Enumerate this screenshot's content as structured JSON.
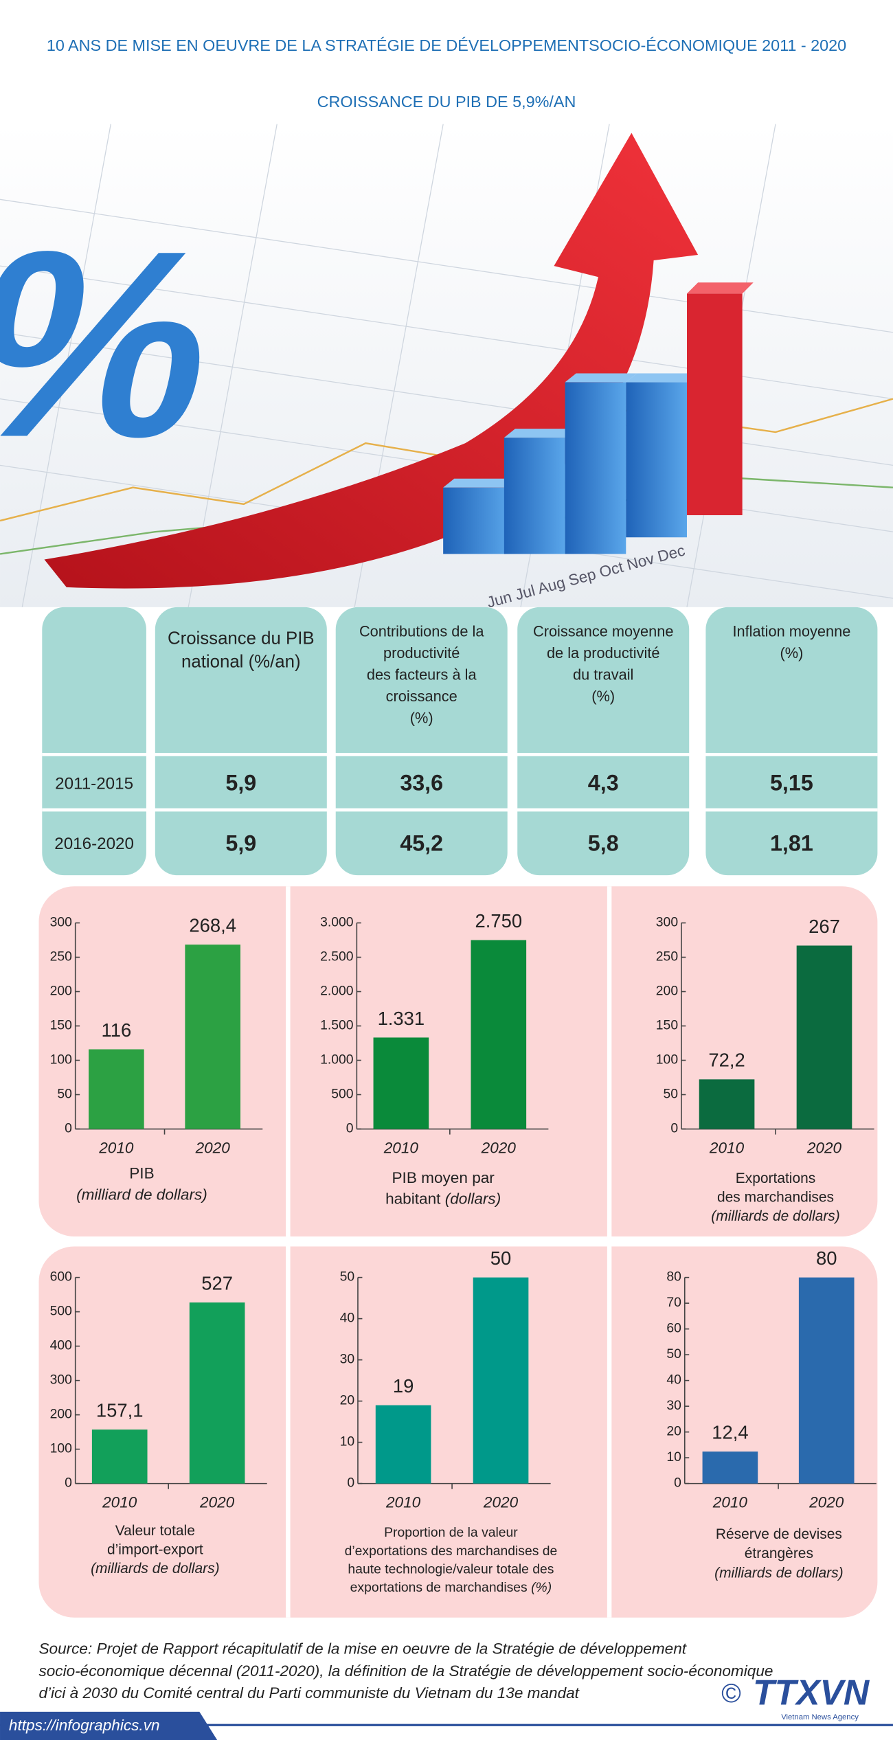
{
  "header": {
    "title": "10 ANS DE MISE EN OEUVRE DE LA STRATÉGIE DE DÉVELOPPEMENTSOCIO-ÉCONOMIQUE 2011 - 2020",
    "subtitle": "CROISSANCE DU PIB DE  5,9%/AN"
  },
  "table": {
    "columns": [
      [
        "Croissance du PIB",
        "national (%/an)"
      ],
      [
        "Contributions de la",
        "productivité",
        "des facteurs à la",
        "croissance",
        "(%)"
      ],
      [
        "Croissance moyenne",
        "de la productivité",
        "du travail",
        "(%)"
      ],
      [
        "Inflation moyenne",
        "(%)"
      ]
    ],
    "rows": [
      [
        "2011-2015",
        "5,9",
        "33,6",
        "4,3",
        "5,15"
      ],
      [
        "2016-2020",
        "5,9",
        "45,2",
        "5,8",
        "1,81"
      ]
    ]
  },
  "chart_data": [
    {
      "type": "bar",
      "caption": [
        [
          "PIB"
        ],
        [
          "(milliard de dollars)"
        ]
      ],
      "categories": [
        "2010",
        "2020"
      ],
      "values": [
        116,
        268.4
      ],
      "value_labels": [
        "116",
        "268,4"
      ],
      "color": "#2ca143",
      "ylim": [
        0,
        300
      ],
      "yticks": [
        0,
        50,
        100,
        150,
        200,
        250,
        300
      ]
    },
    {
      "type": "bar",
      "caption": [
        [
          "PIB moyen par"
        ],
        [
          "habitant ",
          "(dollars)"
        ]
      ],
      "categories": [
        "2010",
        "2020"
      ],
      "values": [
        1331,
        2750
      ],
      "value_labels": [
        "1.331",
        "2.750"
      ],
      "color": "#0a8a3a",
      "ylim": [
        0,
        3000
      ],
      "yticks": [
        0,
        500,
        {
          "value": 1000,
          "label": "1.000"
        },
        {
          "value": 1500,
          "label": "1.500"
        },
        {
          "value": 2000,
          "label": "2.000"
        },
        {
          "value": 2500,
          "label": "2.500"
        },
        {
          "value": 3000,
          "label": "3.000"
        }
      ]
    },
    {
      "type": "bar",
      "caption": [
        [
          "Exportations"
        ],
        [
          "des marchandises"
        ],
        [
          "(milliards de dollars)"
        ]
      ],
      "categories": [
        "2010",
        "2020"
      ],
      "values": [
        72.2,
        267
      ],
      "value_labels": [
        "72,2",
        "267"
      ],
      "color": "#0b6b3f",
      "ylim": [
        0,
        300
      ],
      "yticks": [
        0,
        50,
        100,
        150,
        200,
        250,
        300
      ]
    },
    {
      "type": "bar",
      "caption": [
        [
          "Valeur totale"
        ],
        [
          "d’import-export"
        ],
        [
          "(milliards de dollars)"
        ]
      ],
      "categories": [
        "2010",
        "2020"
      ],
      "values": [
        157.1,
        527
      ],
      "value_labels": [
        "157,1",
        "527"
      ],
      "color": "#12a05a",
      "ylim": [
        0,
        600
      ],
      "yticks": [
        0,
        100,
        200,
        300,
        400,
        500,
        600
      ]
    },
    {
      "type": "bar",
      "caption": [
        [
          "Proportion de la valeur"
        ],
        [
          "d’exportations des marchandises de"
        ],
        [
          "haute technologie/valeur totale des"
        ],
        [
          "exportations de marchandises ",
          "(%)"
        ]
      ],
      "categories": [
        "2010",
        "2020"
      ],
      "values": [
        19,
        50
      ],
      "color": "#00998a",
      "ylim": [
        0,
        50
      ],
      "yticks": [
        0,
        10,
        20,
        30,
        40,
        50
      ]
    },
    {
      "type": "bar",
      "caption": [
        [
          "Réserve de devises"
        ],
        [
          "étrangères"
        ],
        [
          "(milliards de dollars)"
        ]
      ],
      "categories": [
        "2010",
        "2020"
      ],
      "values": [
        12.4,
        80
      ],
      "value_labels": [
        "12,4",
        "80"
      ],
      "color": "#2a6aad",
      "ylim": [
        0,
        80
      ],
      "yticks": [
        0,
        10,
        20,
        30,
        40,
        50,
        60,
        70,
        80
      ]
    }
  ],
  "source": [
    "Source: Projet de Rapport récapitulatif de la mise en oeuvre de la Stratégie de développement",
    "socio-économique décennal (2011-2020),  la définition de la Stratégie de développement  socio-économique",
    "d’ici à 2030 du Comité central du Parti communiste du Vietnam du 13e mandat"
  ],
  "footer": {
    "url": "https://infographics.vn",
    "copyright": "©",
    "logo": "TTXVN",
    "agency": "Vietnam News Agency"
  }
}
